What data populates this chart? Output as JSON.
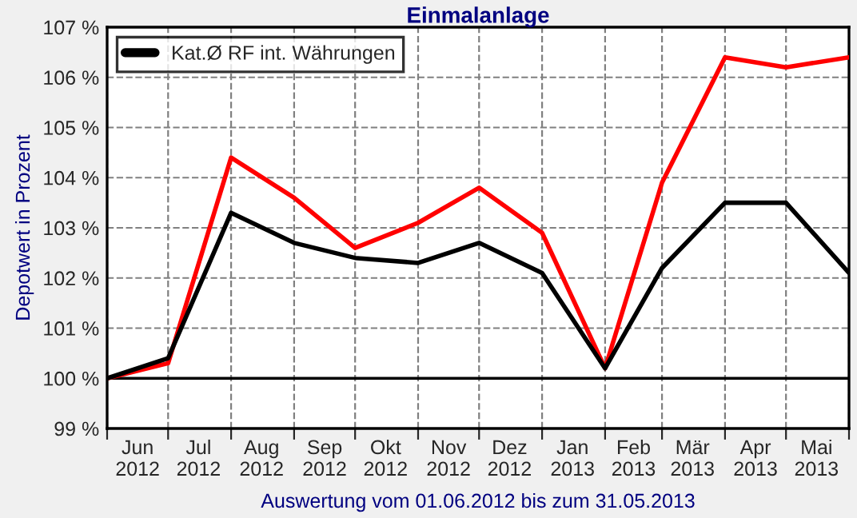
{
  "chart_data": {
    "type": "line",
    "title": "Einmalanlage",
    "ylabel": "Depotwert in Prozent",
    "annotations": [
      "Auswertung vom 01.06.2012 bis zum 31.05.2013"
    ],
    "x": [
      "2012-06-01",
      "2012-07-01",
      "2012-08-01",
      "2012-09-01",
      "2012-10-01",
      "2012-11-01",
      "2012-12-01",
      "2013-01-01",
      "2013-02-01",
      "2013-03-01",
      "2013-04-01",
      "2013-05-01",
      "2013-06-01"
    ],
    "series": [
      {
        "color": "#ff0000",
        "values": [
          100.0,
          100.3,
          104.4,
          103.6,
          102.6,
          103.1,
          103.8,
          102.9,
          100.2,
          103.9,
          106.4,
          106.2,
          106.4
        ]
      },
      {
        "name": "Kat.Ø RF int. Währungen",
        "color": "#000000",
        "values": [
          100.0,
          100.4,
          103.3,
          102.7,
          102.4,
          102.3,
          102.7,
          102.1,
          100.2,
          102.2,
          103.5,
          103.5,
          102.1
        ]
      }
    ],
    "xlim": [
      "2012-06-01",
      "2013-06-01"
    ],
    "xticks": [
      {
        "value": "2012-06-01",
        "label": null
      },
      {
        "value": "2012-07-01",
        "label": null
      },
      {
        "value": "2012-08-01",
        "label": null
      },
      {
        "value": "2012-09-01",
        "label": null
      },
      {
        "value": "2012-10-01",
        "label": null
      },
      {
        "value": "2012-11-01",
        "label": null
      },
      {
        "value": "2012-12-01",
        "label": null
      },
      {
        "value": "2013-01-01",
        "label": null
      },
      {
        "value": "2013-02-01",
        "label": null
      },
      {
        "value": "2013-03-01",
        "label": null
      },
      {
        "value": "2013-04-01",
        "label": null
      },
      {
        "value": "2013-05-01",
        "label": null
      },
      {
        "value": "2013-06-01",
        "label": null
      },
      {
        "value": "2012-06-16",
        "label": "Jun\n2012"
      },
      {
        "value": "2012-07-16",
        "label": "Jul\n2012"
      },
      {
        "value": "2012-08-16",
        "label": "Aug\n2012"
      },
      {
        "value": "2012-09-16",
        "label": "Sep\n2012"
      },
      {
        "value": "2012-10-16",
        "label": "Okt\n2012"
      },
      {
        "value": "2012-11-16",
        "label": "Nov\n2012"
      },
      {
        "value": "2012-12-16",
        "label": "Dez\n2012"
      },
      {
        "value": "2013-01-16",
        "label": "Jan\n2013"
      },
      {
        "value": "2013-02-15",
        "label": "Feb\n2013"
      },
      {
        "value": "2013-03-16",
        "label": "Mär\n2013"
      },
      {
        "value": "2013-04-16",
        "label": "Apr\n2013"
      },
      {
        "value": "2013-05-16",
        "label": "Mai\n2013"
      }
    ],
    "ylim": [
      99,
      107
    ],
    "yticks": [
      {
        "value": 99,
        "label": "99 %"
      },
      {
        "value": 100,
        "label": "100 %"
      },
      {
        "value": 101,
        "label": "101 %"
      },
      {
        "value": 102,
        "label": "102 %"
      },
      {
        "value": 103,
        "label": "103 %"
      },
      {
        "value": 104,
        "label": "104 %"
      },
      {
        "value": 105,
        "label": "105 %"
      },
      {
        "value": 106,
        "label": "106 %"
      },
      {
        "value": 107,
        "label": "107 %"
      }
    ],
    "ref_lines": [
      {
        "axis": "y",
        "value": 100,
        "color": "#000000",
        "line_style": "solid"
      }
    ],
    "grid": true,
    "legend": "top left",
    "marker": "none",
    "line_style": "solid"
  }
}
